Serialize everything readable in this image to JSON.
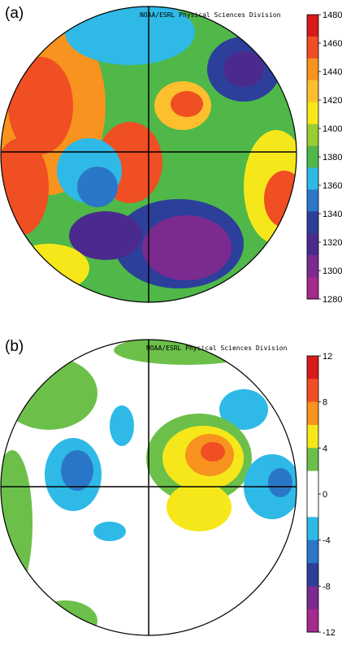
{
  "panels": [
    {
      "id": "a",
      "label": "(a)",
      "credit": "NOAA/ESRL Physical Sciences Division",
      "colorbar": {
        "ticks": [
          "1480",
          "1460",
          "1440",
          "1420",
          "1400",
          "1380",
          "1360",
          "1340",
          "1320",
          "1300",
          "1280"
        ],
        "colors": [
          "#d7191c",
          "#f04e23",
          "#f7931e",
          "#fdbf2d",
          "#f6e71b",
          "#9acd32",
          "#4fb848",
          "#2fb9e6",
          "#2a77c9",
          "#2c3f9b",
          "#4b2a8e",
          "#7b2a90",
          "#a42a8e"
        ]
      }
    },
    {
      "id": "b",
      "label": "(b)",
      "credit": "NOAA/ESRL Physical Sciences Division",
      "colorbar": {
        "ticks": [
          "12",
          "8",
          "4",
          "0",
          "-4",
          "-8",
          "-12"
        ],
        "colors": [
          "#d7191c",
          "#f04e23",
          "#f7931e",
          "#f6e71b",
          "#6cc04a",
          "#ffffff",
          "#ffffff",
          "#2fb9e6",
          "#2a77c9",
          "#2c3f9b",
          "#7b2a90",
          "#a42a8e"
        ]
      }
    }
  ]
}
